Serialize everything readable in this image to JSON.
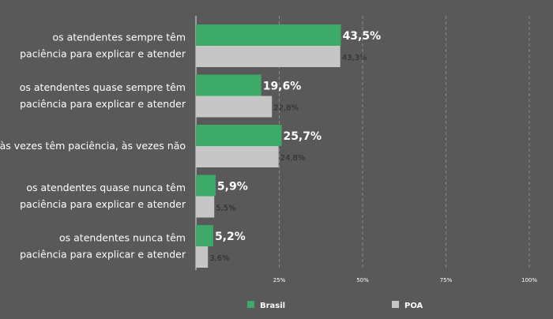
{
  "chart_data": {
    "type": "bar",
    "orientation": "horizontal",
    "categories": [
      [
        "os atendentes sempre têm",
        "paciência para explicar e atender"
      ],
      [
        "os atendentes quase sempre têm",
        "paciência para explicar e atender"
      ],
      [
        "às vezes têm paciência, às vezes não"
      ],
      [
        "os atendentes quase nunca têm",
        "paciência para explicar e atender"
      ],
      [
        "os atendentes nunca têm",
        "paciência para explicar e atender"
      ]
    ],
    "series": [
      {
        "name": "Brasil",
        "color": "#3daa6a",
        "values": [
          43.5,
          19.6,
          25.7,
          5.9,
          5.2
        ],
        "labels": [
          "43,5%",
          "19,6%",
          "25,7%",
          "5,9%",
          "5,2%"
        ]
      },
      {
        "name": "POA",
        "color": "#c6c6c6",
        "values": [
          43.3,
          22.8,
          24.8,
          5.5,
          3.6
        ],
        "labels": [
          "43,3%",
          "22,8%",
          "24,8%",
          "5,5%",
          "3,6%"
        ]
      }
    ],
    "xlim": [
      0,
      100
    ],
    "xticks": [
      25,
      50,
      75,
      100
    ],
    "xtick_labels": [
      "25%",
      "50%",
      "75%",
      "100%"
    ],
    "grid": true,
    "legend_position": "bottom"
  }
}
